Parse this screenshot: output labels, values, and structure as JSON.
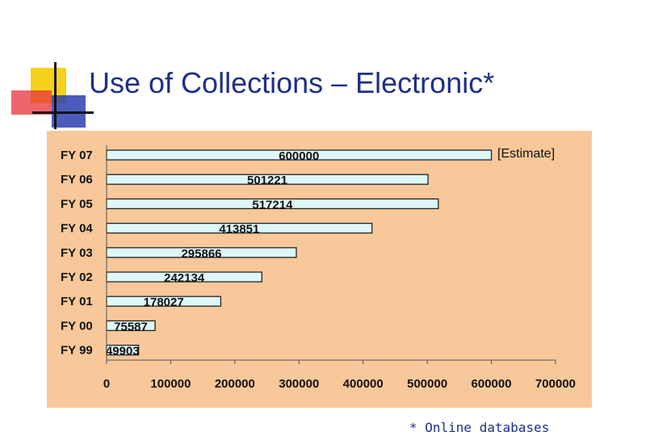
{
  "slide": {
    "title": "Use of Collections – Electronic*",
    "footnote": "* Online databases"
  },
  "colors": {
    "plot_bg": "#f8c89a",
    "bar_fill": "#ddf8f8",
    "bar_stroke": "#222222",
    "title": "#1f2f88",
    "accent_yellow": "#f4d21a",
    "accent_red": "#e8323c",
    "accent_blue": "#2b3fb0"
  },
  "chart_data": {
    "type": "bar",
    "orientation": "horizontal",
    "title": "",
    "xlabel": "",
    "ylabel": "",
    "categories": [
      "FY 07",
      "FY 06",
      "FY 05",
      "FY 04",
      "FY 03",
      "FY 02",
      "FY 01",
      "FY 00",
      "FY 99"
    ],
    "values": [
      600000,
      501221,
      517214,
      413851,
      295866,
      242134,
      178027,
      75587,
      49903
    ],
    "data_labels": [
      "600000",
      "501221",
      "517214",
      "413851",
      "295866",
      "242134",
      "178027",
      "75587",
      "49903"
    ],
    "xlim": [
      0,
      700000
    ],
    "xticks": [
      0,
      100000,
      200000,
      300000,
      400000,
      500000,
      600000,
      700000
    ],
    "xtick_labels": [
      "0",
      "100000",
      "200000",
      "300000",
      "400000",
      "500000",
      "600000",
      "700000"
    ],
    "annotation": "[Estimate]",
    "grid": false,
    "legend": "none"
  }
}
